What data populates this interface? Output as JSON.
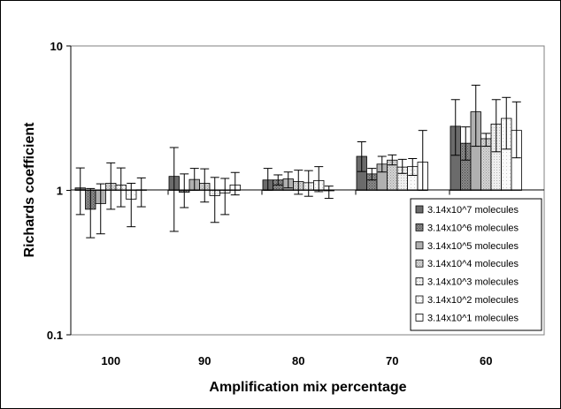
{
  "chart_data": {
    "type": "bar",
    "title": "",
    "xlabel": "Amplification mix percentage",
    "ylabel": "Richards coefficient",
    "yscale": "log",
    "ylim": [
      0.1,
      10
    ],
    "yticks": [
      {
        "value": 0.1,
        "label": "0.1"
      },
      {
        "value": 1,
        "label": "1"
      },
      {
        "value": 10,
        "label": "10"
      }
    ],
    "grid": false,
    "legend_position": "bottom-right",
    "categories": [
      "100",
      "90",
      "80",
      "70",
      "60"
    ],
    "series": [
      {
        "name": "3.14x10^7 molecules",
        "color": "#6b6b6b",
        "pattern": "solid",
        "values": [
          1.04,
          1.25,
          1.18,
          1.72,
          2.78
        ],
        "err_low": [
          0.68,
          0.52,
          1.0,
          1.35,
          1.75
        ],
        "err_high": [
          1.43,
          1.98,
          1.42,
          2.17,
          4.25
        ]
      },
      {
        "name": "3.14x10^6 molecules",
        "color": "#8a8a8a",
        "pattern": "dots",
        "values": [
          0.74,
          0.97,
          1.18,
          1.3,
          2.12
        ],
        "err_low": [
          0.47,
          0.76,
          1.09,
          1.18,
          1.62
        ],
        "err_high": [
          1.03,
          1.3,
          1.28,
          1.42,
          2.75
        ]
      },
      {
        "name": "3.14x10^5 molecules",
        "color": "#b0b0b0",
        "pattern": "solid",
        "values": [
          0.81,
          1.19,
          1.2,
          1.52,
          3.5
        ],
        "err_low": [
          0.5,
          1.0,
          1.04,
          1.34,
          2.02
        ],
        "err_high": [
          1.11,
          1.42,
          1.34,
          1.72,
          5.35
        ]
      },
      {
        "name": "3.14x10^4 molecules",
        "color": "#d5d5d5",
        "pattern": "dots",
        "values": [
          1.12,
          1.12,
          1.15,
          1.62,
          2.28
        ],
        "err_low": [
          0.74,
          0.83,
          0.94,
          1.5,
          2.02
        ],
        "err_high": [
          1.55,
          1.41,
          1.38,
          1.76,
          2.48
        ]
      },
      {
        "name": "3.14x10^3 molecules",
        "color": "#e8e8e8",
        "pattern": "dots",
        "values": [
          1.09,
          0.92,
          1.13,
          1.45,
          2.88
        ],
        "err_low": [
          0.77,
          0.6,
          0.91,
          1.31,
          1.85
        ],
        "err_high": [
          1.43,
          1.23,
          1.37,
          1.64,
          4.25
        ]
      },
      {
        "name": "3.14x10^2 molecules",
        "color": "#f4f4f4",
        "pattern": "dots",
        "values": [
          0.87,
          0.96,
          1.17,
          1.46,
          3.15
        ],
        "err_low": [
          0.56,
          0.68,
          0.98,
          1.27,
          1.93
        ],
        "err_high": [
          1.12,
          1.21,
          1.46,
          1.66,
          4.4
        ]
      },
      {
        "name": "3.14x10^1 molecules",
        "color": "#ffffff",
        "pattern": "solid",
        "values": [
          1.01,
          1.09,
          1.0,
          1.57,
          2.6
        ],
        "err_low": [
          0.77,
          0.93,
          0.88,
          1.0,
          1.68
        ],
        "err_high": [
          1.22,
          1.33,
          1.07,
          2.6,
          4.1
        ]
      }
    ]
  }
}
